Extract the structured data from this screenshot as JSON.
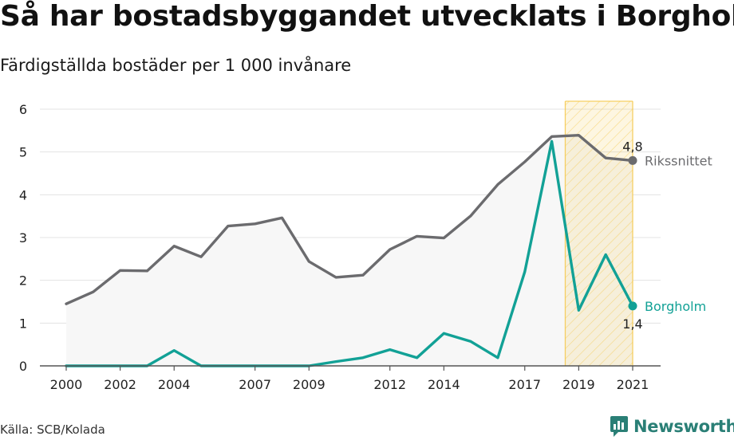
{
  "title": "Så har bostadsbyggandet utvecklats i Borgholm",
  "subtitle": "Färdigställda bostäder per 1 000 invånare",
  "source": "Källa: SCB/Kolada",
  "brand": {
    "name": "Newsworthy",
    "icon": "newsworthy-logo-icon",
    "color": "#2a7f76"
  },
  "chart_data": {
    "type": "line",
    "x": [
      2000,
      2001,
      2002,
      2003,
      2004,
      2005,
      2006,
      2007,
      2008,
      2009,
      2010,
      2011,
      2012,
      2013,
      2014,
      2015,
      2016,
      2017,
      2018,
      2019,
      2020,
      2021
    ],
    "x_ticks": [
      "2000",
      "2002",
      "2004",
      "2007",
      "2009",
      "2012",
      "2014",
      "2017",
      "2019",
      "2021"
    ],
    "y_ticks": [
      "0",
      "1",
      "2",
      "3",
      "4",
      "5",
      "6"
    ],
    "ylim": [
      0,
      6
    ],
    "grid": true,
    "series": [
      {
        "name": "Rikssnittet",
        "color": "#6b6b6e",
        "area_fill": "#f7f7f7",
        "values": [
          1.45,
          1.73,
          2.23,
          2.22,
          2.8,
          2.55,
          3.27,
          3.32,
          3.46,
          2.44,
          2.07,
          2.12,
          2.72,
          3.03,
          2.99,
          3.51,
          4.24,
          4.77,
          5.36,
          5.39,
          4.86,
          4.8
        ],
        "end_label": "4,8"
      },
      {
        "name": "Borgholm",
        "color": "#12a196",
        "values": [
          0,
          0,
          0,
          0,
          0.36,
          0,
          0,
          0,
          0,
          0,
          0.1,
          0.19,
          0.38,
          0.19,
          0.76,
          0.57,
          0.19,
          2.2,
          5.25,
          1.3,
          2.6,
          1.4
        ],
        "end_label": "1,4"
      }
    ],
    "highlight_band": {
      "from": 2018.5,
      "to": 2021,
      "color": "#f5c542"
    }
  }
}
